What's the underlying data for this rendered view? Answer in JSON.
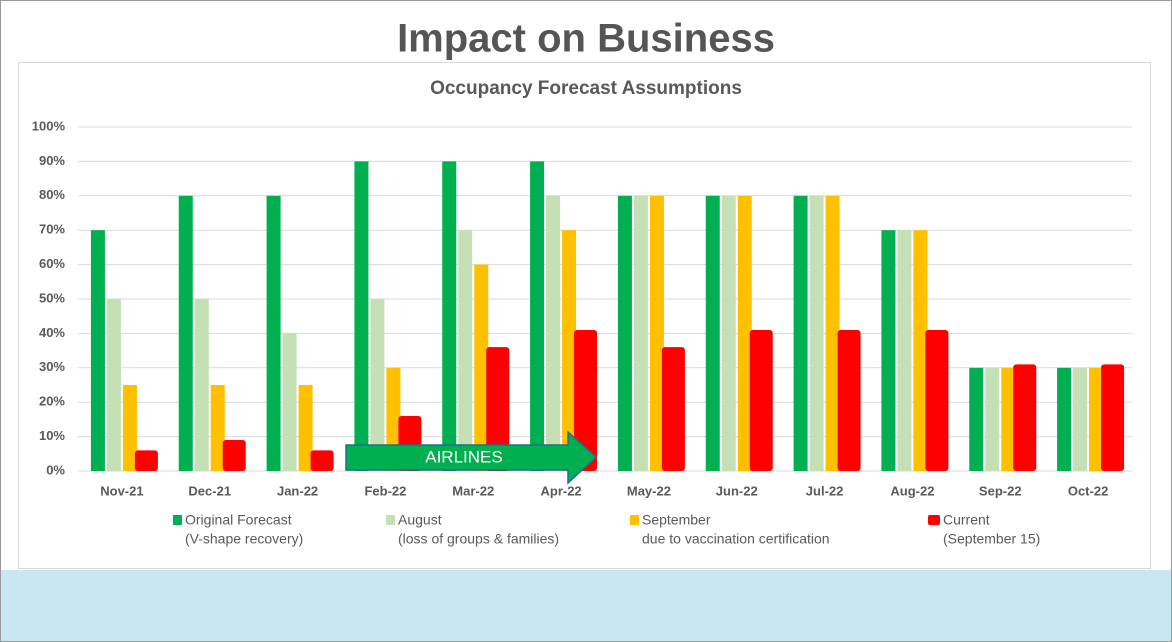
{
  "header": {
    "title": "Impact on Business"
  },
  "chart_data": {
    "type": "bar",
    "title": "Occupancy Forecast Assumptions",
    "categories": [
      "Nov-21",
      "Dec-21",
      "Jan-22",
      "Feb-22",
      "Mar-22",
      "Apr-22",
      "May-22",
      "Jun-22",
      "Jul-22",
      "Aug-22",
      "Sep-22",
      "Oct-22"
    ],
    "series": [
      {
        "name": "Original Forecast",
        "note": "(V-shape recovery)",
        "color": "#00b050",
        "values": [
          70,
          80,
          80,
          90,
          90,
          90,
          80,
          80,
          80,
          70,
          30,
          30
        ]
      },
      {
        "name": "August",
        "note": "(loss of groups & families)",
        "color": "#c5e0b4",
        "values": [
          50,
          50,
          40,
          50,
          70,
          80,
          80,
          80,
          80,
          70,
          30,
          30
        ]
      },
      {
        "name": "September",
        "note": "due to vaccination certification",
        "color": "#ffc000",
        "values": [
          25,
          25,
          25,
          30,
          60,
          70,
          80,
          80,
          80,
          70,
          30,
          30
        ]
      },
      {
        "name": "Current",
        "note": "(September 15)",
        "color": "#ff0000",
        "values": [
          6,
          9,
          6,
          16,
          36,
          41,
          36,
          41,
          41,
          41,
          31,
          31
        ]
      }
    ],
    "ylim": [
      0,
      100
    ],
    "yticks": [
      {
        "value": 0,
        "label": "0%"
      },
      {
        "value": 10,
        "label": "10%"
      },
      {
        "value": 20,
        "label": "20%"
      },
      {
        "value": 30,
        "label": "30%"
      },
      {
        "value": 40,
        "label": "40%"
      },
      {
        "value": 50,
        "label": "50%"
      },
      {
        "value": 60,
        "label": "60%"
      },
      {
        "value": 70,
        "label": "70%"
      },
      {
        "value": 80,
        "label": "80%"
      },
      {
        "value": 90,
        "label": "90%"
      },
      {
        "value": 100,
        "label": "100%"
      }
    ],
    "grid": true,
    "annotation": "AIRLINES"
  }
}
